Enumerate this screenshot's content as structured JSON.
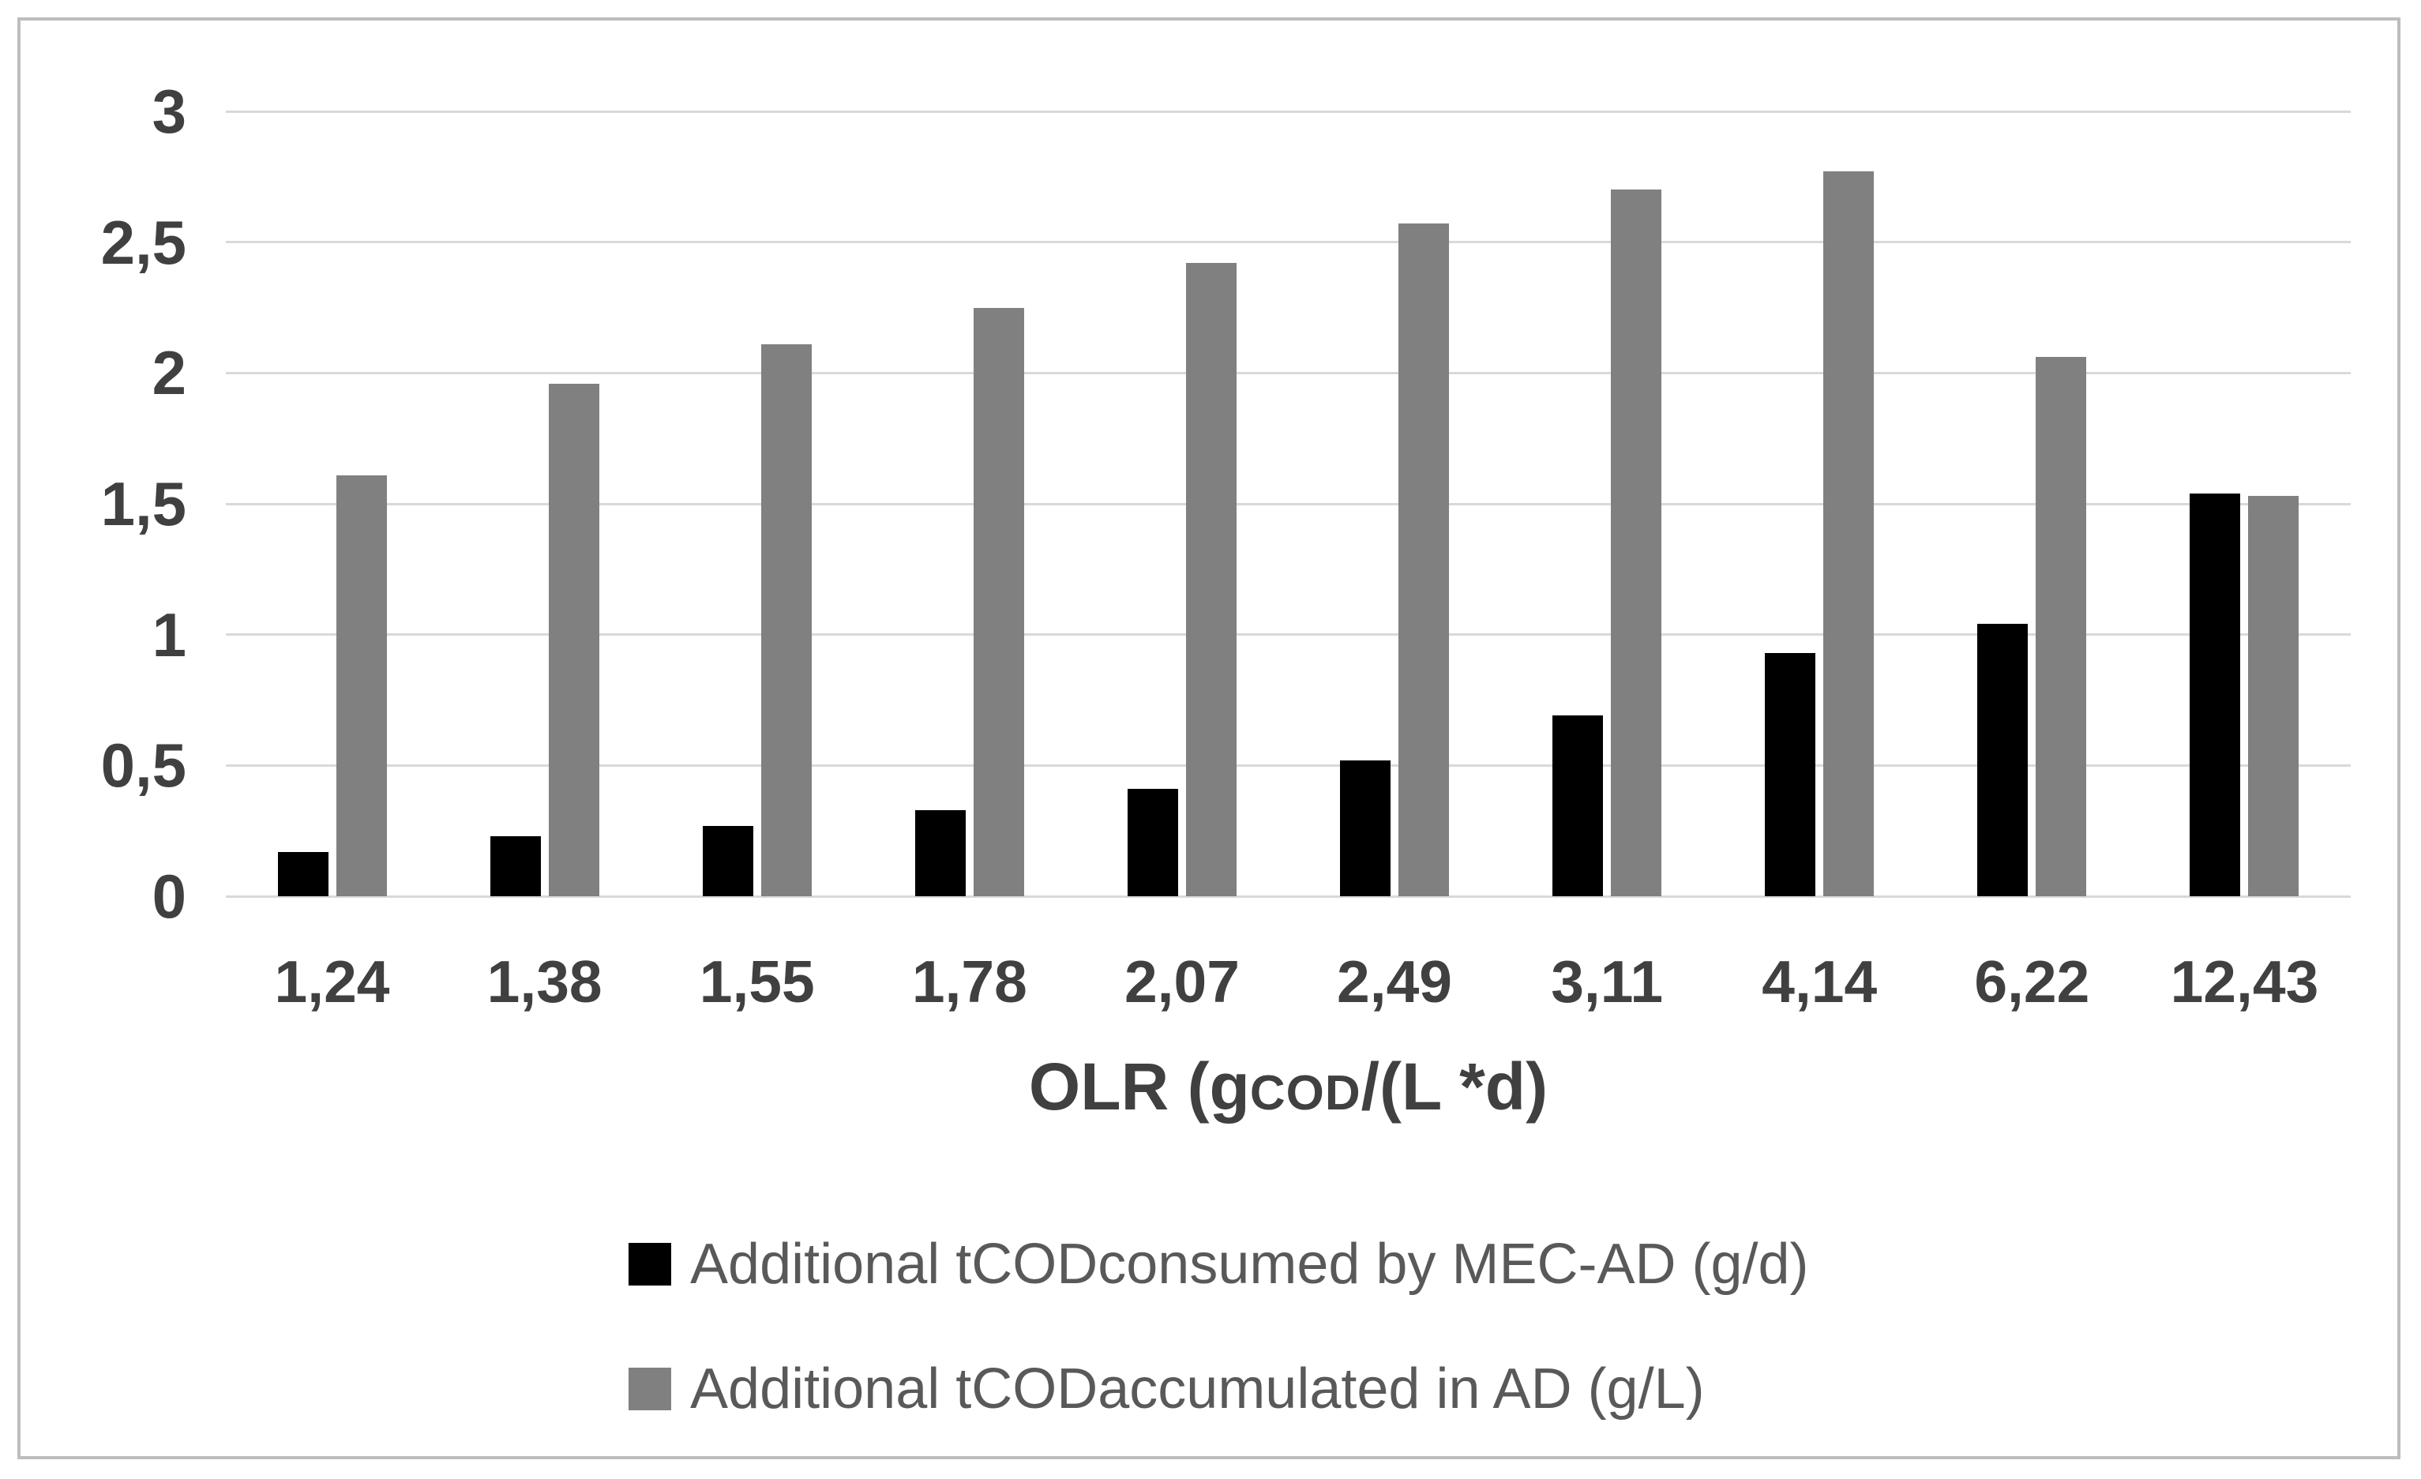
{
  "chart_data": {
    "type": "bar",
    "categories": [
      "1,24",
      "1,38",
      "1,55",
      "1,78",
      "2,07",
      "2,49",
      "3,11",
      "4,14",
      "6,22",
      "12,43"
    ],
    "series": [
      {
        "name": "Additional tCODconsumed by MEC-AD (g/d)",
        "color": "#000000",
        "values": [
          0.17,
          0.23,
          0.27,
          0.33,
          0.41,
          0.52,
          0.69,
          0.93,
          1.04,
          1.54
        ]
      },
      {
        "name": "Additional tCODaccumulated in AD (g/L)",
        "color": "#808080",
        "values": [
          1.61,
          1.96,
          2.11,
          2.25,
          2.42,
          2.57,
          2.7,
          2.77,
          2.06,
          1.53
        ]
      }
    ],
    "title": "",
    "xlabel": "OLR (gCOD/(L *d)",
    "xlabel_parts": {
      "pre": "OLR (g",
      "sub": "COD",
      "post": "/(L *d)"
    },
    "ylabel": "",
    "ylim": [
      0,
      3
    ],
    "ytick_step": 0.5,
    "ytick_labels": [
      "0",
      "0,5",
      "1",
      "1,5",
      "2",
      "2,5",
      "3"
    ],
    "grid": true,
    "legend_position": "bottom-left",
    "decimal_separator": ","
  },
  "colors": {
    "grid": "#d9d9d9",
    "frame": "#bdbdbd",
    "tick_text": "#404040",
    "legend_text": "#595959",
    "background": "#ffffff"
  }
}
